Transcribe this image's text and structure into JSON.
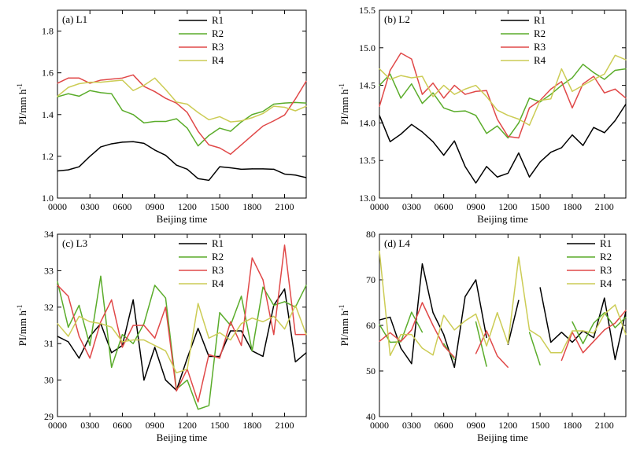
{
  "chart_data": [
    {
      "type": "line",
      "label": "(a)  L1",
      "xlabel": "Beijing time",
      "ylabel_main": "PI/mm h",
      "ylabel_sup": "-1",
      "ylim": [
        1.0,
        1.9
      ],
      "yticks": [
        1.0,
        1.2,
        1.4,
        1.6,
        1.8
      ],
      "ytick_labels": [
        "1.0",
        "1.2",
        "1.4",
        "1.6",
        "1.8"
      ],
      "xlim": [
        0,
        23
      ],
      "xticks": [
        0,
        3,
        6,
        9,
        12,
        15,
        18,
        21
      ],
      "xtick_labels": [
        "0000",
        "0300",
        "0600",
        "0900",
        "1200",
        "1500",
        "1800",
        "2100"
      ],
      "legend_position": "top-center",
      "series": [
        {
          "name": "R1",
          "color": "#000000",
          "values": [
            1.13,
            1.135,
            1.15,
            1.2,
            1.245,
            1.26,
            1.268,
            1.27,
            1.262,
            1.23,
            1.205,
            1.158,
            1.138,
            1.093,
            1.085,
            1.15,
            1.145,
            1.138,
            1.14,
            1.14,
            1.138,
            1.115,
            1.11,
            1.098
          ]
        },
        {
          "name": "R2",
          "color": "#5aac2a",
          "values": [
            1.485,
            1.5,
            1.488,
            1.515,
            1.505,
            1.5,
            1.42,
            1.4,
            1.36,
            1.367,
            1.367,
            1.38,
            1.335,
            1.25,
            1.3,
            1.335,
            1.32,
            1.365,
            1.4,
            1.415,
            1.45,
            1.455,
            1.458,
            1.455
          ]
        },
        {
          "name": "R3",
          "color": "#e04848",
          "values": [
            1.55,
            1.575,
            1.575,
            1.55,
            1.565,
            1.57,
            1.575,
            1.59,
            1.535,
            1.51,
            1.478,
            1.455,
            1.41,
            1.32,
            1.255,
            1.24,
            1.21,
            1.255,
            1.3,
            1.345,
            1.37,
            1.398,
            1.475,
            1.56
          ]
        },
        {
          "name": "R4",
          "color": "#cccc55",
          "values": [
            1.488,
            1.53,
            1.548,
            1.555,
            1.555,
            1.56,
            1.565,
            1.515,
            1.54,
            1.575,
            1.52,
            1.46,
            1.45,
            1.41,
            1.375,
            1.39,
            1.365,
            1.37,
            1.385,
            1.405,
            1.44,
            1.435,
            1.418,
            1.44
          ]
        }
      ]
    },
    {
      "type": "line",
      "label": "(b)  L2",
      "xlabel": "Beijing time",
      "ylabel_main": "PI/mm h",
      "ylabel_sup": "-1",
      "ylim": [
        13.0,
        15.5
      ],
      "yticks": [
        13.0,
        13.5,
        14.0,
        14.5,
        15.0,
        15.5
      ],
      "ytick_labels": [
        "13.0",
        "13.5",
        "14.0",
        "14.5",
        "15.0",
        "15.5"
      ],
      "xlim": [
        0,
        23
      ],
      "xticks": [
        0,
        3,
        6,
        9,
        12,
        15,
        18,
        21
      ],
      "xtick_labels": [
        "0000",
        "0300",
        "0600",
        "0900",
        "1200",
        "1500",
        "1800",
        "2100"
      ],
      "legend_position": "top-center",
      "series": [
        {
          "name": "R1",
          "color": "#000000",
          "values": [
            14.1,
            13.75,
            13.85,
            13.98,
            13.88,
            13.75,
            13.57,
            13.76,
            13.42,
            13.2,
            13.42,
            13.28,
            13.33,
            13.6,
            13.28,
            13.48,
            13.61,
            13.67,
            13.84,
            13.7,
            13.94,
            13.87,
            14.03,
            14.25
          ]
        },
        {
          "name": "R2",
          "color": "#5aac2a",
          "values": [
            14.5,
            14.65,
            14.33,
            14.52,
            14.26,
            14.4,
            14.2,
            14.15,
            14.16,
            14.1,
            13.86,
            13.96,
            13.8,
            14.0,
            14.33,
            14.28,
            14.38,
            14.5,
            14.6,
            14.78,
            14.67,
            14.58,
            14.7,
            14.72
          ]
        },
        {
          "name": "R3",
          "color": "#e04848",
          "values": [
            14.22,
            14.7,
            14.93,
            14.85,
            14.38,
            14.53,
            14.33,
            14.5,
            14.38,
            14.42,
            14.43,
            14.05,
            13.82,
            13.8,
            14.2,
            14.3,
            14.45,
            14.55,
            14.2,
            14.52,
            14.62,
            14.4,
            14.45,
            14.33
          ]
        },
        {
          "name": "R4",
          "color": "#cccc55",
          "values": [
            14.72,
            14.58,
            14.63,
            14.6,
            14.62,
            14.35,
            14.5,
            14.38,
            14.45,
            14.5,
            14.35,
            14.17,
            14.1,
            14.05,
            13.97,
            14.3,
            14.32,
            14.72,
            14.42,
            14.5,
            14.58,
            14.65,
            14.9,
            14.84
          ]
        }
      ]
    },
    {
      "type": "line",
      "label": "(c)  L3",
      "xlabel": "Beijing time",
      "ylabel_main": "PI/mm h",
      "ylabel_sup": "-1",
      "ylim": [
        29,
        34
      ],
      "yticks": [
        29,
        30,
        31,
        32,
        33,
        34
      ],
      "ytick_labels": [
        "29",
        "30",
        "31",
        "32",
        "33",
        "34"
      ],
      "xlim": [
        0,
        23
      ],
      "xticks": [
        0,
        3,
        6,
        9,
        12,
        15,
        18,
        21
      ],
      "xtick_labels": [
        "0000",
        "0300",
        "0600",
        "0900",
        "1200",
        "1500",
        "1800",
        "2100"
      ],
      "legend_position": "top-center",
      "series": [
        {
          "name": "R1",
          "color": "#000000",
          "values": [
            31.2,
            31.05,
            30.6,
            31.2,
            31.55,
            30.75,
            30.95,
            32.2,
            30.0,
            30.9,
            30.0,
            29.72,
            30.6,
            31.42,
            30.65,
            30.65,
            31.35,
            31.35,
            30.8,
            30.65,
            32.05,
            32.5,
            30.5,
            30.75
          ]
        },
        {
          "name": "R2",
          "color": "#5aac2a",
          "values": [
            32.7,
            31.45,
            32.05,
            30.95,
            32.85,
            30.35,
            31.25,
            31.0,
            31.55,
            32.6,
            32.25,
            29.75,
            30.0,
            29.2,
            29.3,
            31.85,
            31.5,
            32.3,
            30.8,
            32.55,
            32.05,
            32.15,
            32.0,
            32.6
          ]
        },
        {
          "name": "R3",
          "color": "#e04848",
          "values": [
            32.6,
            32.3,
            31.2,
            30.6,
            31.6,
            32.2,
            30.9,
            31.5,
            31.5,
            31.15,
            32.0,
            29.7,
            30.3,
            29.4,
            30.7,
            30.6,
            31.6,
            30.95,
            33.35,
            32.75,
            31.25,
            33.7,
            31.25,
            31.25
          ]
        },
        {
          "name": "R4",
          "color": "#cccc55",
          "values": [
            31.55,
            31.2,
            31.75,
            31.6,
            31.55,
            31.45,
            31.05,
            31.1,
            31.1,
            30.95,
            30.8,
            30.2,
            30.3,
            32.1,
            31.15,
            31.3,
            31.1,
            31.55,
            31.7,
            31.6,
            31.75,
            31.4,
            32.05,
            31.25
          ]
        }
      ]
    },
    {
      "type": "line",
      "label": "(d)  L4",
      "xlabel": "Beijing time",
      "ylabel_main": "PI/mm h",
      "ylabel_sup": "-1",
      "ylim": [
        40,
        80
      ],
      "yticks": [
        40,
        50,
        60,
        70,
        80
      ],
      "ytick_labels": [
        "40",
        "50",
        "60",
        "70",
        "80"
      ],
      "xlim": [
        0,
        23
      ],
      "xticks": [
        0,
        3,
        6,
        9,
        12,
        15,
        18,
        21
      ],
      "xtick_labels": [
        "0000",
        "0300",
        "0600",
        "0900",
        "1200",
        "1500",
        "1800",
        "2100"
      ],
      "legend_position": "top-right",
      "series": [
        {
          "name": "R1",
          "color": "#000000",
          "values": [
            61.2,
            61.8,
            55.0,
            51.6,
            73.5,
            62.8,
            58.0,
            50.8,
            66.3,
            70.0,
            57.3,
            null,
            55.8,
            65.5,
            null,
            68.3,
            56.3,
            58.5,
            56.3,
            58.8,
            57.3,
            66.0,
            52.5,
            63.0
          ]
        },
        {
          "name": "R2",
          "color": "#5aac2a",
          "values": [
            60.2,
            56.3,
            56.4,
            62.9,
            58.5,
            null,
            56.0,
            52.5,
            null,
            60.8,
            51.0,
            null,
            null,
            null,
            58.5,
            51.3,
            null,
            null,
            60.8,
            56.0,
            60.5,
            62.8,
            59.5,
            61.8
          ]
        },
        {
          "name": "R3",
          "color": "#e04848",
          "values": [
            56.5,
            58.4,
            56.5,
            59.0,
            65.0,
            60.0,
            55.5,
            53.0,
            null,
            53.8,
            58.8,
            53.3,
            50.8,
            null,
            null,
            null,
            null,
            52.3,
            58.5,
            54.0,
            56.5,
            59.0,
            60.5,
            63.3
          ]
        },
        {
          "name": "R4",
          "color": "#cccc55",
          "values": [
            76.3,
            53.4,
            58.0,
            58.0,
            55.0,
            53.5,
            62.2,
            59.0,
            61.0,
            62.5,
            55.5,
            62.8,
            56.0,
            75.0,
            59.0,
            57.5,
            54.0,
            54.0,
            58.8,
            58.8,
            58.3,
            62.5,
            64.5,
            58.0
          ]
        }
      ]
    }
  ]
}
